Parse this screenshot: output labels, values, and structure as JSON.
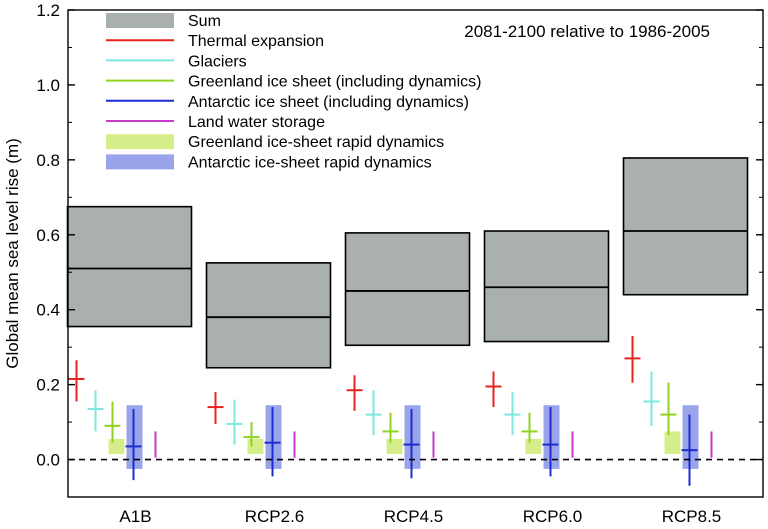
{
  "chart_data": {
    "type": "bar",
    "ylabel": "Global mean sea level rise (m)",
    "xlabel": "",
    "annotation": "2081-2100 relative to 1986-2005",
    "ylim": [
      -0.1,
      1.2
    ],
    "yticks": [
      "0.0",
      "0.2",
      "0.4",
      "0.6",
      "0.8",
      "1.0",
      "1.2"
    ],
    "yticks_values": [
      0.0,
      0.2,
      0.4,
      0.6,
      0.8,
      1.0,
      1.2
    ],
    "zero_line": "dashed",
    "categories": [
      "A1B",
      "RCP2.6",
      "RCP4.5",
      "RCP6.0",
      "RCP8.5"
    ],
    "legend": [
      {
        "key": "sum",
        "label": "Sum",
        "kind": "box",
        "color": "#a9b0ad"
      },
      {
        "key": "thermal",
        "label": "Thermal expansion",
        "kind": "line",
        "color": "#e8231c"
      },
      {
        "key": "glaciers",
        "label": "Glaciers",
        "kind": "line",
        "color": "#7ce8e0"
      },
      {
        "key": "greenland",
        "label": "Greenland ice sheet (including dynamics)",
        "kind": "line",
        "color": "#8ed321"
      },
      {
        "key": "antarctic",
        "label": "Antarctic ice sheet (including dynamics)",
        "kind": "line",
        "color": "#1f2bd1"
      },
      {
        "key": "landwater",
        "label": "Land water storage",
        "kind": "line",
        "color": "#c33bc8"
      },
      {
        "key": "greenland_rapid",
        "label": "Greenland ice-sheet rapid dynamics",
        "kind": "box",
        "color": "#d6ee8a"
      },
      {
        "key": "antarctic_rapid",
        "label": "Antarctic ice-sheet rapid dynamics",
        "kind": "box",
        "color": "#9aa4ea"
      }
    ],
    "series": [
      {
        "name": "Sum",
        "key": "sum",
        "median": [
          0.51,
          0.38,
          0.45,
          0.46,
          0.61
        ],
        "low": [
          0.355,
          0.245,
          0.305,
          0.315,
          0.44
        ],
        "high": [
          0.675,
          0.525,
          0.605,
          0.61,
          0.805
        ]
      },
      {
        "name": "Thermal expansion",
        "key": "thermal",
        "median": [
          0.215,
          0.14,
          0.185,
          0.195,
          0.27
        ],
        "low": [
          0.155,
          0.095,
          0.13,
          0.14,
          0.205
        ],
        "high": [
          0.265,
          0.18,
          0.225,
          0.235,
          0.33
        ]
      },
      {
        "name": "Glaciers",
        "key": "glaciers",
        "median": [
          0.135,
          0.095,
          0.12,
          0.12,
          0.155
        ],
        "low": [
          0.075,
          0.04,
          0.065,
          0.065,
          0.09
        ],
        "high": [
          0.185,
          0.16,
          0.185,
          0.18,
          0.235
        ]
      },
      {
        "name": "Greenland ice sheet (including dynamics)",
        "key": "greenland",
        "median": [
          0.09,
          0.06,
          0.075,
          0.075,
          0.12
        ],
        "low": [
          0.045,
          0.035,
          0.045,
          0.045,
          0.065
        ],
        "high": [
          0.155,
          0.1,
          0.125,
          0.125,
          0.205
        ]
      },
      {
        "name": "Antarctic ice sheet (including dynamics)",
        "key": "antarctic",
        "median": [
          0.035,
          0.045,
          0.04,
          0.04,
          0.025
        ],
        "low": [
          -0.055,
          -0.045,
          -0.05,
          -0.045,
          -0.07
        ],
        "high": [
          0.135,
          0.14,
          0.135,
          0.14,
          0.12
        ]
      },
      {
        "name": "Land water storage",
        "key": "landwater",
        "median": [
          0.04,
          0.04,
          0.04,
          0.04,
          0.04
        ],
        "low": [
          0.005,
          0.005,
          0.005,
          0.005,
          0.005
        ],
        "high": [
          0.075,
          0.075,
          0.075,
          0.075,
          0.075
        ]
      },
      {
        "name": "Greenland ice-sheet rapid dynamics",
        "key": "greenland_rapid",
        "low": [
          0.015,
          0.015,
          0.015,
          0.015,
          0.015
        ],
        "high": [
          0.055,
          0.055,
          0.055,
          0.055,
          0.075
        ]
      },
      {
        "name": "Antarctic ice-sheet rapid dynamics",
        "key": "antarctic_rapid",
        "low": [
          -0.025,
          -0.025,
          -0.025,
          -0.025,
          -0.025
        ],
        "high": [
          0.145,
          0.145,
          0.145,
          0.145,
          0.145
        ]
      }
    ]
  }
}
